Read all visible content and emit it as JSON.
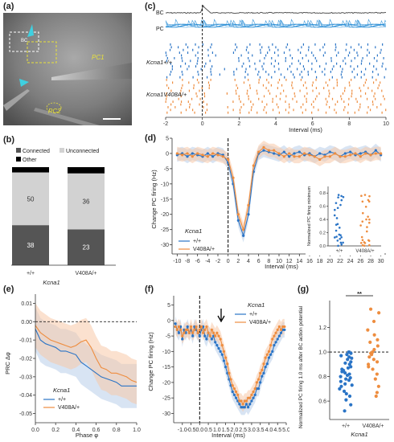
{
  "colors": {
    "wt": "#2a74c6",
    "mut": "#ee8d3f",
    "wt_fill": "#b8cdea",
    "mut_fill": "#f7c9a8",
    "bc_trace": "#555555",
    "pc_trace": "#2c8fd6",
    "raster_wt": "#2a74c6",
    "raster_mut": "#ee8d3f",
    "connected": "#555555",
    "unconnected": "#d2d2d2",
    "other": "#000000"
  },
  "panel_labels": [
    "(a)",
    "(b)",
    "(c)",
    "(d)",
    "(e)",
    "(f)",
    "(g)"
  ],
  "panel_a": {
    "cell_labels": [
      "PC1",
      "PC2",
      "BC"
    ]
  },
  "panel_b": {
    "legend": [
      "Connected",
      "Unconnected",
      "Other"
    ],
    "group_title": "Kcna1",
    "chart_data": {
      "type": "bar",
      "categories": [
        "+/+",
        "V408A/+"
      ],
      "series": [
        {
          "name": "Connected",
          "values": [
            38,
            23
          ]
        },
        {
          "name": "Unconnected",
          "values": [
            50,
            36
          ]
        },
        {
          "name": "Other",
          "values": [
            5,
            4
          ]
        }
      ]
    }
  },
  "panel_c": {
    "trace_labels": [
      "BC",
      "PC"
    ],
    "raster_labels": [
      "Kcna1+/+",
      "Kcna1V408A/+"
    ],
    "xlabel": "Interval (ms)",
    "x_ticks": [
      "-2",
      "0",
      "2",
      "4",
      "6",
      "8",
      "10"
    ]
  },
  "panel_d": {
    "ylabel": "Change PC firing (Hz)",
    "xlabel": "Interval (ms)",
    "legend_title": "Kcna1",
    "legend": [
      "+/+",
      "V408A/+"
    ],
    "inset_ylabel": "Normalized PC firing minimum",
    "inset_categories": [
      "+/+",
      "V408A/+"
    ],
    "inset_y_ticks": [
      "0.0",
      "0.2",
      "0.4",
      "0.6",
      "0.8"
    ],
    "chart_data": {
      "type": "line",
      "x": [
        -10,
        -9,
        -8,
        -7,
        -6,
        -5,
        -4,
        -3,
        -2,
        -1,
        0,
        1,
        2,
        3,
        4,
        5,
        6,
        7,
        8,
        9,
        10,
        11,
        12,
        13,
        14,
        15,
        16,
        17,
        18,
        19,
        20,
        21,
        22,
        23,
        24,
        25,
        26,
        27,
        28,
        29,
        30
      ],
      "series": [
        {
          "name": "+/+",
          "values": [
            -0.5,
            0,
            -1,
            0,
            -0.5,
            -1,
            0,
            -1,
            0,
            -0.5,
            -3,
            -10,
            -22,
            -27,
            -20,
            -6,
            0,
            1,
            0.5,
            0,
            -0.5,
            0.5,
            -1,
            0,
            0.5,
            -0.5,
            0,
            -1,
            0,
            -0.5,
            0.5,
            0,
            -1,
            0,
            0.5,
            -0.5,
            0,
            0.5,
            -0.5,
            1,
            -0.5
          ]
        },
        {
          "name": "V408A/+",
          "values": [
            0,
            -0.5,
            0,
            -1,
            0,
            -0.5,
            -1,
            0,
            -0.5,
            -1,
            -2,
            -8,
            -20,
            -25,
            -17,
            -4,
            0.5,
            2,
            1,
            1,
            0,
            -1,
            0,
            -1,
            -1,
            0,
            -0.5,
            -1,
            -2,
            -1,
            -1,
            0,
            -1,
            -1,
            -0.5,
            0,
            -1,
            0,
            -0.5,
            0,
            0
          ]
        }
      ],
      "xlim": [
        -11,
        31
      ],
      "ylim": [
        -33,
        5
      ],
      "x_ticks": [
        -10,
        -8,
        -6,
        -4,
        -2,
        0,
        2,
        4,
        6,
        8,
        10,
        12,
        14,
        16,
        18,
        20,
        22,
        24,
        26,
        28,
        30
      ],
      "y_ticks": [
        5,
        0,
        -5,
        -10,
        -15,
        -20,
        -25,
        -30
      ]
    }
  },
  "panel_e": {
    "ylabel": "PRC Δφ",
    "xlabel": "Phase φ",
    "legend_title": "Kcna1",
    "legend": [
      "+/+",
      "V408A/+"
    ],
    "chart_data": {
      "type": "line",
      "x": [
        0,
        0.05,
        0.1,
        0.15,
        0.2,
        0.25,
        0.3,
        0.35,
        0.4,
        0.45,
        0.5,
        0.55,
        0.6,
        0.65,
        0.7,
        0.75,
        0.8,
        0.85,
        0.9,
        0.95,
        1.0
      ],
      "series": [
        {
          "name": "+/+",
          "values": [
            -0.004,
            -0.01,
            -0.012,
            -0.013,
            -0.014,
            -0.016,
            -0.016,
            -0.017,
            -0.018,
            -0.022,
            -0.024,
            -0.026,
            -0.028,
            -0.03,
            -0.031,
            -0.032,
            -0.033,
            -0.035,
            -0.035,
            -0.035,
            -0.035
          ]
        },
        {
          "name": "V408A/+",
          "values": [
            -0.002,
            -0.006,
            -0.008,
            -0.01,
            -0.011,
            -0.012,
            -0.013,
            -0.014,
            -0.013,
            -0.011,
            -0.01,
            -0.014,
            -0.02,
            -0.025,
            -0.026,
            -0.028,
            -0.028,
            -0.029,
            -0.03,
            -0.032,
            -0.033
          ]
        }
      ],
      "xlim": [
        0,
        1
      ],
      "ylim": [
        -0.055,
        0.015
      ],
      "x_ticks": [
        "0.0",
        "0.2",
        "0.4",
        "0.6",
        "0.8",
        "1.0"
      ],
      "y_ticks": [
        "0.01",
        "0.00",
        "-0.01",
        "-0.02",
        "-0.03",
        "-0.04",
        "-0.05"
      ]
    }
  },
  "panel_f": {
    "ylabel": "Change PC firing (Hz)",
    "xlabel": "Interval (ms)",
    "legend_title": "Kcna1",
    "legend": [
      "+/+",
      "V408A/+"
    ],
    "chart_data": {
      "type": "line",
      "x": [
        -1.4,
        -1.3,
        -1.2,
        -1.1,
        -1.0,
        -0.9,
        -0.8,
        -0.7,
        -0.6,
        -0.5,
        -0.4,
        -0.3,
        -0.2,
        -0.1,
        0,
        0.1,
        0.2,
        0.3,
        0.4,
        0.5,
        0.6,
        0.7,
        0.8,
        0.9,
        1.0,
        1.1,
        1.2,
        1.3,
        1.4,
        1.5,
        1.6,
        1.7,
        1.8,
        1.9,
        2.0,
        2.1,
        2.2,
        2.3,
        2.4,
        2.5,
        2.6,
        2.7,
        2.8,
        2.9,
        3.0,
        3.1,
        3.2,
        3.3,
        3.4,
        3.5,
        3.6,
        3.7,
        3.8,
        3.9,
        4.0,
        4.1,
        4.2,
        4.3,
        4.4,
        4.5,
        4.6,
        4.7,
        4.8,
        4.9
      ],
      "series": [
        {
          "name": "+/+",
          "values": [
            -1,
            -3,
            -4,
            -2,
            -6,
            -3,
            -4,
            -2,
            -4,
            -3,
            -5,
            -2,
            -3,
            -4,
            -5,
            -3,
            -2,
            -5,
            -6,
            -4,
            -5,
            -6,
            -5,
            -7,
            -8,
            -9,
            -10,
            -11,
            -13,
            -15,
            -17,
            -19,
            -21,
            -23,
            -24,
            -25,
            -26,
            -27,
            -28,
            -28,
            -28,
            -27,
            -28,
            -27,
            -26,
            -25,
            -24,
            -22,
            -22,
            -20,
            -18,
            -17,
            -15,
            -14,
            -12,
            -11,
            -10,
            -8,
            -7,
            -6,
            -5,
            -4,
            -3,
            -3
          ]
        },
        {
          "name": "V408A/+",
          "values": [
            -2,
            -3,
            -2,
            -3,
            -5,
            -4,
            -3,
            -3,
            -4,
            -2,
            -4,
            -3,
            -2,
            -4,
            -3,
            -2,
            -4,
            -3,
            -2,
            -4,
            -5,
            -3,
            -4,
            -5,
            -4,
            -5,
            -6,
            -8,
            -10,
            -12,
            -14,
            -17,
            -19,
            -21,
            -22,
            -23,
            -24,
            -26,
            -26,
            -27,
            -26,
            -26,
            -25,
            -25,
            -24,
            -23,
            -22,
            -20,
            -19,
            -17,
            -16,
            -14,
            -12,
            -11,
            -10,
            -8,
            -6,
            -5,
            -4,
            -3,
            -2,
            -3,
            -2,
            -2
          ]
        }
      ],
      "xlim": [
        -1.5,
        5.0
      ],
      "ylim": [
        -33,
        8
      ],
      "x_ticks": [
        "-1.0",
        "-0.5",
        "0.0",
        "0.5",
        "1.0",
        "1.5",
        "2.0",
        "2.5",
        "3.0",
        "3.5",
        "4.0",
        "4.5",
        "5.0"
      ],
      "y_ticks": [
        "5",
        "0",
        "-5",
        "-10",
        "-15",
        "-20",
        "-25",
        "-30"
      ]
    }
  },
  "panel_g": {
    "ylabel": "Normalized PC firing 1.0 ms after BC action potential",
    "categories": [
      "+/+",
      "V408A/+"
    ],
    "group_title": "Kcna1",
    "significance": "**",
    "y_ticks": [
      "0.6",
      "0.8",
      "1.0",
      "1.2"
    ],
    "chart_data": {
      "type": "scatter",
      "series": [
        {
          "name": "+/+",
          "values": [
            0.52,
            0.57,
            0.61,
            0.64,
            0.66,
            0.68,
            0.7,
            0.72,
            0.73,
            0.74,
            0.76,
            0.77,
            0.78,
            0.79,
            0.8,
            0.81,
            0.82,
            0.83,
            0.84,
            0.85,
            0.86,
            0.87,
            0.88,
            0.9,
            0.91,
            0.92,
            0.94,
            0.95,
            0.96,
            0.97,
            0.98,
            0.99,
            1.0,
            1.0
          ]
        },
        {
          "name": "V408A/+",
          "values": [
            0.64,
            0.67,
            0.72,
            0.78,
            0.82,
            0.86,
            0.88,
            0.9,
            0.92,
            0.94,
            0.96,
            0.98,
            0.99,
            1.0,
            1.02,
            1.05,
            1.08,
            1.1,
            1.14,
            1.18,
            1.25,
            1.32,
            1.35
          ]
        }
      ],
      "ylim": [
        0.45,
        1.42
      ]
    }
  }
}
